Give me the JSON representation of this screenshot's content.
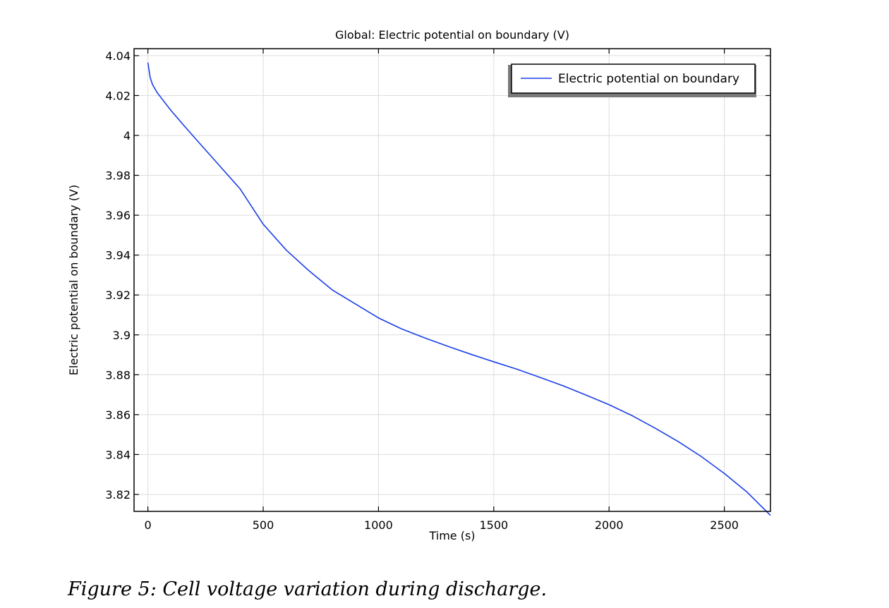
{
  "caption": "Figure 5: Cell voltage variation during discharge.",
  "chart_data": {
    "type": "line",
    "title": "Global: Electric potential on boundary (V)",
    "xlabel": "Time (s)",
    "ylabel": "Electric potential on boundary (V)",
    "xlim": [
      -60,
      2700
    ],
    "ylim": [
      3.8115,
      4.0435
    ],
    "x_ticks": [
      0,
      500,
      1000,
      1500,
      2000,
      2500
    ],
    "x_tick_labels": [
      "0",
      "500",
      "1000",
      "1500",
      "2000",
      "2500"
    ],
    "y_ticks": [
      3.82,
      3.84,
      3.86,
      3.88,
      3.9,
      3.92,
      3.94,
      3.96,
      3.98,
      4.0,
      4.02,
      4.04
    ],
    "y_tick_labels": [
      "3.82",
      "3.84",
      "3.86",
      "3.88",
      "3.9",
      "3.92",
      "3.94",
      "3.96",
      "3.98",
      "4",
      "4.02",
      "4.04"
    ],
    "grid": true,
    "legend_position": "top-right",
    "series": [
      {
        "name": "Electric potential on boundary",
        "color": "#1a3ee8",
        "x": [
          0,
          10,
          20,
          40,
          60,
          100,
          150,
          200,
          300,
          400,
          500,
          600,
          700,
          800,
          900,
          1000,
          1100,
          1200,
          1300,
          1400,
          1500,
          1600,
          1700,
          1800,
          1900,
          2000,
          2100,
          2200,
          2300,
          2400,
          2500,
          2600,
          2700
        ],
        "y": [
          4.0365,
          4.029,
          4.0255,
          4.0215,
          4.0185,
          4.0125,
          4.0058,
          3.9992,
          3.9862,
          3.9732,
          3.9555,
          3.9425,
          3.932,
          3.9225,
          3.9155,
          3.9085,
          3.903,
          3.8985,
          3.8943,
          3.8903,
          3.8865,
          3.8828,
          3.8787,
          3.8745,
          3.8698,
          3.865,
          3.8595,
          3.8532,
          3.8465,
          3.839,
          3.8305,
          3.821,
          3.8095
        ]
      }
    ]
  }
}
